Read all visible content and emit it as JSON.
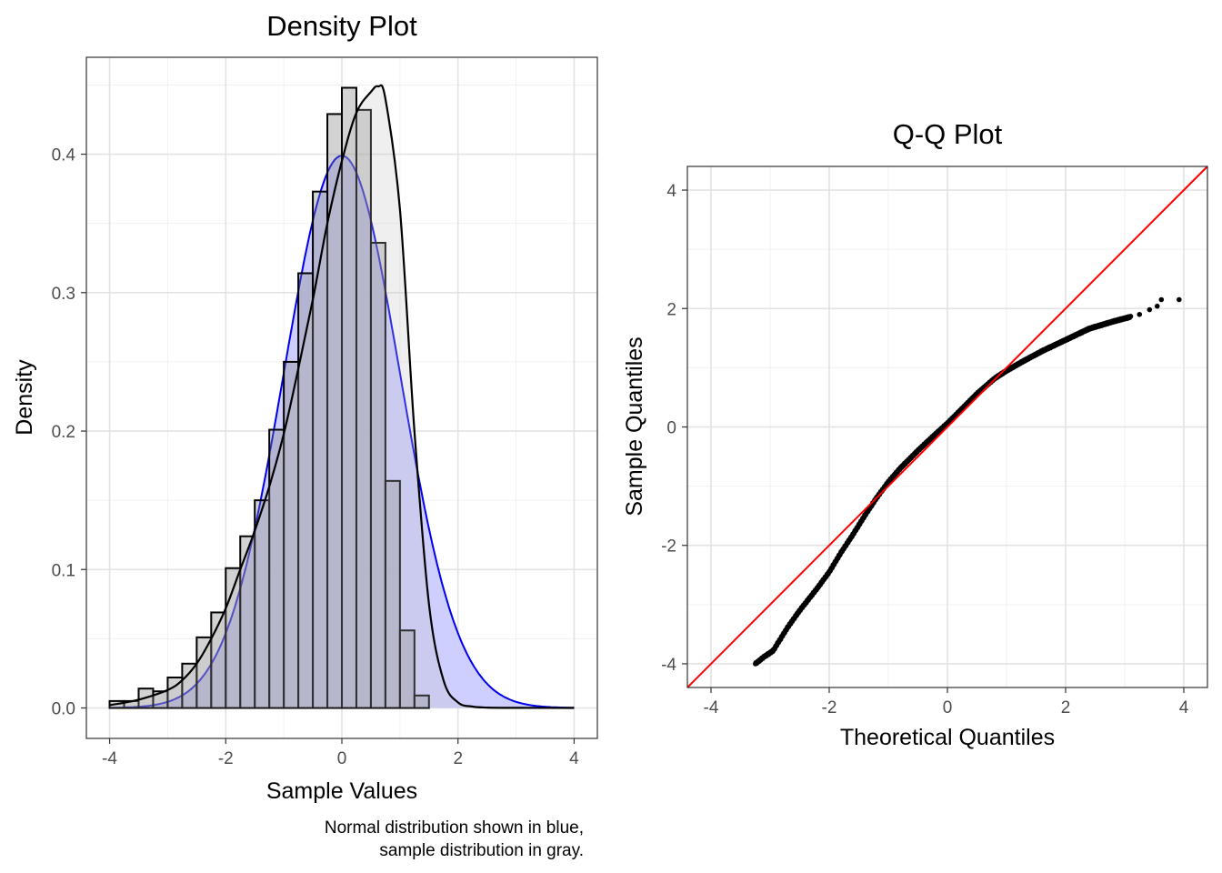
{
  "chart_data": [
    {
      "type": "histogram",
      "title": "Density Plot",
      "xlabel": "Sample Values",
      "ylabel": "Density",
      "caption": [
        "Normal distribution shown in blue,",
        "sample distribution in gray."
      ],
      "xlim": [
        -4.4,
        4.4
      ],
      "ylim": [
        -0.022,
        0.47
      ],
      "xticks": [
        -4,
        -2,
        0,
        2,
        4
      ],
      "yticks": [
        0.0,
        0.1,
        0.2,
        0.3,
        0.4
      ],
      "ytick_labels": [
        "0.0",
        "0.1",
        "0.2",
        "0.3",
        "0.4"
      ],
      "grid": true,
      "bin_width": 0.25,
      "bins_start": -4.0,
      "bin_densities": [
        0.005,
        0.005,
        0.014,
        0.012,
        0.022,
        0.032,
        0.051,
        0.069,
        0.101,
        0.124,
        0.15,
        0.201,
        0.25,
        0.314,
        0.373,
        0.429,
        0.448,
        0.432,
        0.336,
        0.164,
        0.056,
        0.009,
        0,
        0,
        0,
        0,
        0,
        0,
        0,
        0,
        0,
        0
      ],
      "series": [
        {
          "name": "Normal distribution",
          "color": "#0000ee",
          "fill": "#ccccff",
          "mean": 0,
          "sd": 1,
          "range": [
            -4,
            4
          ]
        },
        {
          "name": "sample distribution",
          "color": "#000000",
          "fill": "#bebebe",
          "x": [
            -4.0,
            -3.5,
            -3.0,
            -2.75,
            -2.5,
            -2.25,
            -2.0,
            -1.75,
            -1.5,
            -1.25,
            -1.0,
            -0.75,
            -0.5,
            -0.25,
            0.0,
            0.25,
            0.5,
            0.625,
            0.75,
            1.0,
            1.25,
            1.5,
            1.75,
            2.0,
            2.25,
            2.5,
            3.0,
            4.0
          ],
          "y": [
            0.002,
            0.006,
            0.013,
            0.02,
            0.032,
            0.05,
            0.072,
            0.1,
            0.128,
            0.16,
            0.198,
            0.245,
            0.295,
            0.35,
            0.395,
            0.43,
            0.445,
            0.449,
            0.44,
            0.36,
            0.2,
            0.075,
            0.02,
            0.004,
            0.001,
            0.0003,
            0.0001,
            0.0
          ]
        }
      ]
    },
    {
      "type": "scatter",
      "title": "Q-Q Plot",
      "xlabel": "Theoretical Quantiles",
      "ylabel": "Sample Quantiles",
      "xlim": [
        -4.4,
        4.4
      ],
      "ylim": [
        -4.4,
        4.4
      ],
      "xticks": [
        -4,
        -2,
        0,
        2,
        4
      ],
      "yticks": [
        -4,
        -2,
        0,
        2,
        4
      ],
      "grid": true,
      "reference_line": {
        "slope": 1,
        "intercept": 0,
        "color": "#ff0000"
      },
      "points_color": "#000000",
      "curve": {
        "x": [
          -3.25,
          -3.1,
          -2.95,
          -2.7,
          -2.5,
          -2.2,
          -2.0,
          -1.8,
          -1.6,
          -1.4,
          -1.2,
          -1.0,
          -0.8,
          -0.5,
          -0.2,
          0.0,
          0.2,
          0.5,
          0.8,
          1.0,
          1.3,
          1.6,
          2.0,
          2.4,
          2.8,
          3.1
        ],
        "y": [
          -4.0,
          -3.88,
          -3.78,
          -3.38,
          -3.1,
          -2.72,
          -2.45,
          -2.12,
          -1.82,
          -1.5,
          -1.2,
          -0.93,
          -0.7,
          -0.4,
          -0.12,
          0.06,
          0.26,
          0.56,
          0.82,
          0.95,
          1.12,
          1.28,
          1.47,
          1.66,
          1.78,
          1.86
        ]
      },
      "outliers": {
        "x": [
          3.25,
          3.42,
          3.55,
          3.62,
          3.92
        ],
        "y": [
          1.9,
          1.98,
          2.04,
          2.15,
          2.15
        ]
      }
    }
  ]
}
